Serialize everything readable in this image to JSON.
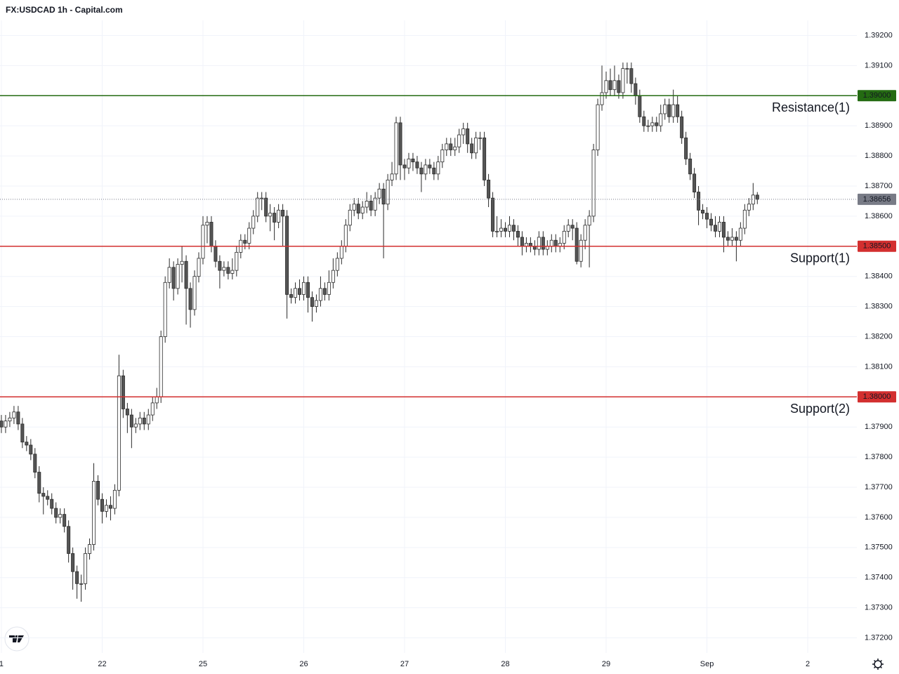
{
  "chart_data": {
    "type": "candlestick",
    "title": "FX:USDCAD 1h - Capital.com",
    "up_color": "#ffffff",
    "down_color": "#555555",
    "border_color": "#2a2a2a",
    "grid": true,
    "ylim": [
      1.3715,
      1.3925
    ],
    "yticks": [
      {
        "value": 1.372,
        "label": "1.37200"
      },
      {
        "value": 1.373,
        "label": "1.37300"
      },
      {
        "value": 1.374,
        "label": "1.37400"
      },
      {
        "value": 1.375,
        "label": "1.37500"
      },
      {
        "value": 1.376,
        "label": "1.37600"
      },
      {
        "value": 1.377,
        "label": "1.37700"
      },
      {
        "value": 1.378,
        "label": "1.37800"
      },
      {
        "value": 1.379,
        "label": "1.37900"
      },
      {
        "value": 1.38,
        "label": "1.38000"
      },
      {
        "value": 1.381,
        "label": "1.38100"
      },
      {
        "value": 1.382,
        "label": "1.38200"
      },
      {
        "value": 1.383,
        "label": "1.38300"
      },
      {
        "value": 1.384,
        "label": "1.38400"
      },
      {
        "value": 1.385,
        "label": "1.38500"
      },
      {
        "value": 1.386,
        "label": "1.38600"
      },
      {
        "value": 1.387,
        "label": "1.38700"
      },
      {
        "value": 1.388,
        "label": "1.38800"
      },
      {
        "value": 1.389,
        "label": "1.38900"
      },
      {
        "value": 1.39,
        "label": "1.39000"
      },
      {
        "value": 1.391,
        "label": "1.39100"
      },
      {
        "value": 1.392,
        "label": "1.39200"
      }
    ],
    "xlim": [
      -0.33,
      203.7
    ],
    "xticks": [
      {
        "value": 0,
        "label": "1"
      },
      {
        "value": 24,
        "label": "22"
      },
      {
        "value": 48,
        "label": "25"
      },
      {
        "value": 72,
        "label": "26"
      },
      {
        "value": 96,
        "label": "27"
      },
      {
        "value": 120,
        "label": "28"
      },
      {
        "value": 144,
        "label": "29"
      },
      {
        "value": 168,
        "label": "Sep"
      },
      {
        "value": 192,
        "label": "2"
      }
    ],
    "open": [
      1.3792,
      1.379,
      1.3792,
      1.3793,
      1.3795,
      1.3791,
      1.3785,
      1.3784,
      1.3781,
      1.3775,
      1.3768,
      1.3767,
      1.3766,
      1.3763,
      1.376,
      1.3761,
      1.3757,
      1.3748,
      1.3742,
      1.3738,
      1.3738,
      1.3748,
      1.3751,
      1.3772,
      1.3766,
      1.3762,
      1.3764,
      1.3763,
      1.3769,
      1.3807,
      1.3796,
      1.3794,
      1.379,
      1.3791,
      1.3793,
      1.3791,
      1.3794,
      1.3798,
      1.38,
      1.382,
      1.3838,
      1.3843,
      1.3836,
      1.3844,
      1.3845,
      1.3836,
      1.3829,
      1.384,
      1.3846,
      1.3857,
      1.3858,
      1.385,
      1.3845,
      1.3842,
      1.3843,
      1.3841,
      1.3842,
      1.3848,
      1.3852,
      1.3851,
      1.3856,
      1.386,
      1.3866,
      1.3866,
      1.386,
      1.3861,
      1.3858,
      1.3862,
      1.386,
      1.3834,
      1.3833,
      1.3836,
      1.3834,
      1.3838,
      1.3833,
      1.383,
      1.3832,
      1.3836,
      1.3834,
      1.3838,
      1.3842,
      1.3846,
      1.385,
      1.3857,
      1.3862,
      1.3864,
      1.3861,
      1.3863,
      1.3865,
      1.3862,
      1.3866,
      1.3869,
      1.3864,
      1.3872,
      1.3874,
      1.3891,
      1.3877,
      1.3876,
      1.3879,
      1.3878,
      1.3876,
      1.3874,
      1.3877,
      1.3876,
      1.3874,
      1.3878,
      1.3882,
      1.3884,
      1.3882,
      1.3883,
      1.3887,
      1.3889,
      1.3884,
      1.3881,
      1.3886,
      1.3886,
      1.3872,
      1.3866,
      1.3855,
      1.3855,
      1.3856,
      1.3855,
      1.3857,
      1.3855,
      1.3853,
      1.385,
      1.3851,
      1.385,
      1.3849,
      1.3853,
      1.3849,
      1.385,
      1.3852,
      1.385,
      1.3851,
      1.3855,
      1.3857,
      1.3856,
      1.3845,
      1.3852,
      1.3857,
      1.386,
      1.3882,
      1.3897,
      1.3901,
      1.3905,
      1.3902,
      1.3905,
      1.3901,
      1.3909,
      1.3909,
      1.3904,
      1.39,
      1.3893,
      1.389,
      1.389,
      1.3891,
      1.389,
      1.3894,
      1.3897,
      1.3893,
      1.3897,
      1.3893,
      1.3886,
      1.3879,
      1.3874,
      1.3868,
      1.3862,
      1.3861,
      1.3859,
      1.3857,
      1.3855,
      1.3858,
      1.3853,
      1.3852,
      1.3853,
      1.3852,
      1.3856,
      1.3862,
      1.3864,
      1.3867
    ],
    "high": [
      1.3794,
      1.3794,
      1.3795,
      1.3797,
      1.3797,
      1.3793,
      1.3787,
      1.3786,
      1.3783,
      1.3777,
      1.377,
      1.3769,
      1.3768,
      1.3765,
      1.3763,
      1.3763,
      1.3759,
      1.375,
      1.3744,
      1.3741,
      1.375,
      1.3753,
      1.3778,
      1.3774,
      1.3768,
      1.3766,
      1.3767,
      1.3771,
      1.3814,
      1.3809,
      1.3798,
      1.3796,
      1.3793,
      1.3795,
      1.3795,
      1.3796,
      1.38,
      1.3803,
      1.3822,
      1.384,
      1.3846,
      1.3845,
      1.3846,
      1.385,
      1.3847,
      1.3838,
      1.3842,
      1.3848,
      1.386,
      1.386,
      1.386,
      1.3852,
      1.3847,
      1.3845,
      1.3845,
      1.3846,
      1.385,
      1.3854,
      1.3854,
      1.3858,
      1.3862,
      1.3868,
      1.3868,
      1.3868,
      1.3864,
      1.3863,
      1.3864,
      1.3864,
      1.3862,
      1.3836,
      1.3838,
      1.3839,
      1.384,
      1.384,
      1.3835,
      1.3834,
      1.384,
      1.3838,
      1.3842,
      1.3846,
      1.3848,
      1.3852,
      1.3859,
      1.3864,
      1.3866,
      1.3866,
      1.3865,
      1.3868,
      1.3867,
      1.3868,
      1.3871,
      1.3871,
      1.3874,
      1.3878,
      1.3893,
      1.3893,
      1.3879,
      1.3881,
      1.3881,
      1.388,
      1.3878,
      1.3879,
      1.3879,
      1.3878,
      1.388,
      1.3884,
      1.3886,
      1.3886,
      1.3886,
      1.3889,
      1.3891,
      1.3891,
      1.3886,
      1.3888,
      1.3888,
      1.3888,
      1.3874,
      1.3868,
      1.386,
      1.3859,
      1.3858,
      1.386,
      1.3859,
      1.3857,
      1.3855,
      1.3853,
      1.3853,
      1.3852,
      1.3855,
      1.3855,
      1.3852,
      1.3854,
      1.3854,
      1.3853,
      1.3857,
      1.3859,
      1.3859,
      1.3858,
      1.3854,
      1.3859,
      1.3862,
      1.3884,
      1.3899,
      1.391,
      1.3908,
      1.3909,
      1.391,
      1.3907,
      1.3911,
      1.3911,
      1.3911,
      1.3906,
      1.3902,
      1.3895,
      1.3892,
      1.3893,
      1.3893,
      1.3897,
      1.3899,
      1.3899,
      1.3902,
      1.39,
      1.3895,
      1.3888,
      1.3881,
      1.3876,
      1.387,
      1.3864,
      1.3863,
      1.3861,
      1.386,
      1.386,
      1.386,
      1.3855,
      1.3856,
      1.3855,
      1.3858,
      1.3864,
      1.3866,
      1.3871,
      1.3868
    ],
    "low": [
      1.3788,
      1.3788,
      1.379,
      1.3791,
      1.3789,
      1.3783,
      1.3782,
      1.3779,
      1.3773,
      1.3765,
      1.3761,
      1.3764,
      1.3761,
      1.3758,
      1.3758,
      1.3755,
      1.3745,
      1.3736,
      1.3733,
      1.3732,
      1.3736,
      1.3746,
      1.3749,
      1.3764,
      1.3758,
      1.376,
      1.3759,
      1.3761,
      1.3767,
      1.3793,
      1.3788,
      1.3783,
      1.3788,
      1.3789,
      1.3789,
      1.3789,
      1.3792,
      1.3796,
      1.3798,
      1.3818,
      1.3836,
      1.3832,
      1.3834,
      1.3838,
      1.3824,
      1.3823,
      1.3827,
      1.3838,
      1.3844,
      1.3851,
      1.3848,
      1.3843,
      1.3836,
      1.384,
      1.3839,
      1.3839,
      1.384,
      1.3846,
      1.3849,
      1.3849,
      1.3854,
      1.3858,
      1.3862,
      1.3858,
      1.3855,
      1.3852,
      1.3856,
      1.385,
      1.3826,
      1.3831,
      1.3831,
      1.3832,
      1.3832,
      1.3828,
      1.3825,
      1.3828,
      1.383,
      1.3832,
      1.3832,
      1.3836,
      1.384,
      1.3844,
      1.3848,
      1.3855,
      1.386,
      1.3859,
      1.3859,
      1.3861,
      1.386,
      1.386,
      1.3864,
      1.3846,
      1.3862,
      1.387,
      1.3872,
      1.3872,
      1.3872,
      1.3874,
      1.3875,
      1.3874,
      1.3868,
      1.3872,
      1.3874,
      1.3872,
      1.3872,
      1.3876,
      1.388,
      1.388,
      1.388,
      1.3881,
      1.3884,
      1.3881,
      1.3879,
      1.3879,
      1.3882,
      1.387,
      1.3863,
      1.3853,
      1.3853,
      1.3853,
      1.3853,
      1.3853,
      1.3852,
      1.385,
      1.3847,
      1.3848,
      1.3848,
      1.3847,
      1.3847,
      1.3847,
      1.3847,
      1.3848,
      1.3848,
      1.3848,
      1.3849,
      1.3853,
      1.3852,
      1.3844,
      1.3843,
      1.3849,
      1.3843,
      1.3858,
      1.388,
      1.3895,
      1.3899,
      1.39,
      1.39,
      1.3899,
      1.3899,
      1.3904,
      1.3901,
      1.3897,
      1.3891,
      1.3888,
      1.3888,
      1.3888,
      1.3888,
      1.3888,
      1.3892,
      1.3891,
      1.3891,
      1.3891,
      1.3884,
      1.3877,
      1.3872,
      1.3866,
      1.3857,
      1.3859,
      1.3856,
      1.3855,
      1.3853,
      1.3853,
      1.3848,
      1.385,
      1.385,
      1.3845,
      1.385,
      1.3854,
      1.386,
      1.3862,
      1.3864
    ],
    "close": [
      1.379,
      1.3792,
      1.3793,
      1.3795,
      1.3791,
      1.3785,
      1.3784,
      1.3781,
      1.3775,
      1.3768,
      1.3767,
      1.3766,
      1.3763,
      1.376,
      1.3761,
      1.3757,
      1.3748,
      1.3742,
      1.3738,
      1.3738,
      1.3748,
      1.3751,
      1.3772,
      1.3766,
      1.3762,
      1.3764,
      1.3763,
      1.3769,
      1.3807,
      1.3796,
      1.3794,
      1.379,
      1.3791,
      1.3793,
      1.3791,
      1.3794,
      1.3798,
      1.38,
      1.382,
      1.3838,
      1.3843,
      1.3836,
      1.3844,
      1.3845,
      1.3836,
      1.3829,
      1.384,
      1.3846,
      1.3857,
      1.3858,
      1.385,
      1.3845,
      1.3842,
      1.3843,
      1.3841,
      1.3842,
      1.3848,
      1.3852,
      1.3851,
      1.3856,
      1.386,
      1.3866,
      1.3866,
      1.386,
      1.3861,
      1.3858,
      1.3862,
      1.386,
      1.3834,
      1.3833,
      1.3836,
      1.3834,
      1.3838,
      1.3833,
      1.383,
      1.3832,
      1.3836,
      1.3834,
      1.3838,
      1.3842,
      1.3846,
      1.385,
      1.3857,
      1.3862,
      1.3864,
      1.3861,
      1.3863,
      1.3865,
      1.3862,
      1.3866,
      1.3869,
      1.3864,
      1.3872,
      1.3874,
      1.3891,
      1.3877,
      1.3876,
      1.3879,
      1.3878,
      1.3876,
      1.3874,
      1.3877,
      1.3876,
      1.3874,
      1.3878,
      1.3882,
      1.3884,
      1.3882,
      1.3883,
      1.3887,
      1.3889,
      1.3884,
      1.3881,
      1.3886,
      1.3886,
      1.3872,
      1.3866,
      1.3855,
      1.3855,
      1.3856,
      1.3855,
      1.3857,
      1.3855,
      1.3853,
      1.385,
      1.3851,
      1.385,
      1.3849,
      1.3853,
      1.3849,
      1.385,
      1.3852,
      1.385,
      1.3851,
      1.3855,
      1.3857,
      1.3856,
      1.3845,
      1.3852,
      1.3857,
      1.386,
      1.3882,
      1.3897,
      1.3901,
      1.3905,
      1.3902,
      1.3905,
      1.3901,
      1.3909,
      1.3909,
      1.3904,
      1.39,
      1.3893,
      1.389,
      1.389,
      1.3891,
      1.389,
      1.3894,
      1.3897,
      1.3893,
      1.3897,
      1.3893,
      1.3886,
      1.3879,
      1.3874,
      1.3868,
      1.3862,
      1.3861,
      1.3859,
      1.3857,
      1.3855,
      1.3858,
      1.3853,
      1.3852,
      1.3853,
      1.3852,
      1.3856,
      1.3862,
      1.3864,
      1.3867,
      1.38656
    ],
    "levels": [
      {
        "name": "Resistance(1)",
        "value": 1.39,
        "label": "1.39000",
        "color": "#246b12"
      },
      {
        "name": "Support(1)",
        "value": 1.385,
        "label": "1.38500",
        "color": "#d32f2f"
      },
      {
        "name": "Support(2)",
        "value": 1.38,
        "label": "1.38000",
        "color": "#d32f2f"
      }
    ],
    "last_price": {
      "value": 1.38656,
      "label": "1.38656",
      "color": "#787b86"
    }
  }
}
